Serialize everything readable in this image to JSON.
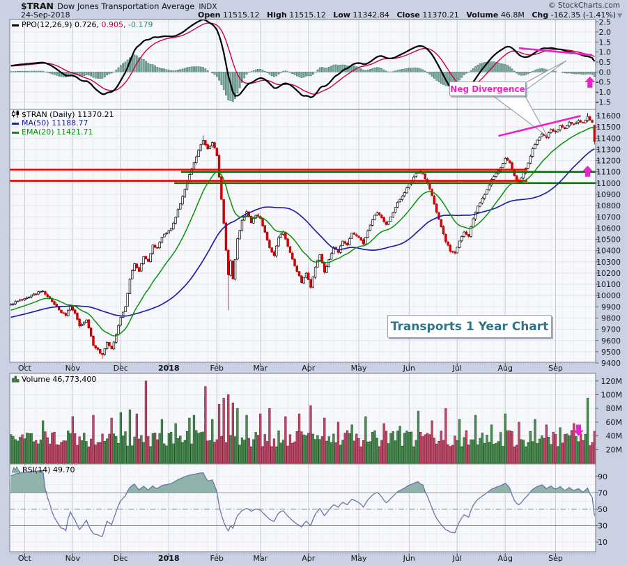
{
  "header": {
    "symbol": "$TRAN",
    "name": "Dow Jones Transportation Average",
    "exchange": "INDX",
    "date": "24-Sep-2018",
    "copyright": "© StockCharts.com",
    "quote": {
      "open": {
        "label": "Open",
        "value": "11515.12"
      },
      "high": {
        "label": "High",
        "value": "11515.12"
      },
      "low": {
        "label": "Low",
        "value": "11342.84"
      },
      "close": {
        "label": "Close",
        "value": "11370.21"
      },
      "volume": {
        "label": "Volume",
        "value": "46.8M"
      },
      "chg": {
        "label": "Chg",
        "value": "-162.35 (-1.41%)",
        "dropdown": "▼"
      }
    }
  },
  "panels": {
    "ppo": {
      "legend_label": "PPO(12,26,9)",
      "v1": "0.726,",
      "v2": "0.905,",
      "v3": "-0.179",
      "axis": [
        "2.5",
        "2.0",
        "1.5",
        "1.0",
        "0.5",
        "0.0",
        "-0.5",
        "-1.0",
        "-1.5"
      ]
    },
    "price": {
      "legend_symbol": "$TRAN (Daily) 11370.21",
      "legend_ma": "MA(50) 11188.77",
      "legend_ema": "EMA(20) 11421.71",
      "axis": [
        "11600",
        "11500",
        "11400",
        "11300",
        "11200",
        "11100",
        "11000",
        "10900",
        "10800",
        "10700",
        "10600",
        "10500",
        "10400",
        "10300",
        "10200",
        "10100",
        "10000",
        "9900",
        "9800",
        "9700",
        "9600",
        "9500",
        "9400"
      ]
    },
    "volume": {
      "legend": "Volume 46,773,400",
      "axis": [
        "120M",
        "100M",
        "80M",
        "60M",
        "40M",
        "20M"
      ]
    },
    "rsi": {
      "legend": "RSI(14) 49.70",
      "axis": [
        "90",
        "70",
        "50",
        "30",
        "10"
      ]
    }
  },
  "annotations": {
    "neg_divergence": "Neg Divergence",
    "chart_label": "Transports 1 Year Chart"
  },
  "chart_data": {
    "type": "candlestick",
    "title": "Transports 1 Year Chart",
    "instrument": "$TRAN Dow Jones Transportation Average INDX",
    "date": "24-Sep-2018",
    "last": {
      "open": 11515.12,
      "high": 11515.12,
      "low": 11342.84,
      "close": 11370.21,
      "volume": 46773400,
      "change": -162.35,
      "change_pct": -1.41
    },
    "indicators": {
      "ppo": {
        "params": [
          12,
          26,
          9
        ],
        "values": [
          0.726,
          0.905,
          -0.179
        ],
        "range": [
          -1.5,
          2.5
        ]
      },
      "ma50": 11188.77,
      "ema20": 11421.71,
      "rsi": {
        "params": [
          14
        ],
        "value": 49.7,
        "range": [
          0,
          100
        ]
      },
      "volume_axis_max_m": 120
    },
    "price_axis": {
      "min": 9400,
      "max": 11600,
      "step": 100
    },
    "months": [
      "Oct",
      "Nov",
      "Dec",
      "2018",
      "Feb",
      "Mar",
      "Apr",
      "May",
      "Jun",
      "Jul",
      "Aug",
      "Sep"
    ],
    "month_start_days": [
      6,
      27,
      48,
      69,
      90,
      109,
      130,
      152,
      174,
      195,
      216,
      238
    ],
    "total_days": 256,
    "close_keypoints": [
      [
        -60,
        9650
      ],
      [
        -45,
        9720
      ],
      [
        -30,
        9790
      ],
      [
        -15,
        9840
      ],
      [
        -5,
        9890
      ],
      [
        0,
        9920
      ],
      [
        4,
        9960
      ],
      [
        8,
        9990
      ],
      [
        12,
        10030
      ],
      [
        14,
        10040
      ],
      [
        16,
        9985
      ],
      [
        18,
        9950
      ],
      [
        21,
        9870
      ],
      [
        24,
        9820
      ],
      [
        26,
        9905
      ],
      [
        28,
        9845
      ],
      [
        30,
        9725
      ],
      [
        33,
        9780
      ],
      [
        36,
        9560
      ],
      [
        40,
        9470
      ],
      [
        42,
        9585
      ],
      [
        44,
        9530
      ],
      [
        46,
        9650
      ],
      [
        48,
        9805
      ],
      [
        50,
        9900
      ],
      [
        52,
        10150
      ],
      [
        54,
        10280
      ],
      [
        56,
        10220
      ],
      [
        58,
        10350
      ],
      [
        60,
        10300
      ],
      [
        62,
        10450
      ],
      [
        64,
        10420
      ],
      [
        66,
        10520
      ],
      [
        68,
        10560
      ],
      [
        70,
        10600
      ],
      [
        72,
        10700
      ],
      [
        74,
        10820
      ],
      [
        76,
        10950
      ],
      [
        78,
        11080
      ],
      [
        80,
        11180
      ],
      [
        82,
        11300
      ],
      [
        84,
        11385
      ],
      [
        86,
        11300
      ],
      [
        88,
        11360
      ],
      [
        90,
        11250
      ],
      [
        91,
        11050
      ],
      [
        92,
        10850
      ],
      [
        93,
        10640
      ],
      [
        94,
        10400
      ],
      [
        95,
        10180
      ],
      [
        96,
        10310
      ],
      [
        97,
        10150
      ],
      [
        99,
        10500
      ],
      [
        101,
        10670
      ],
      [
        103,
        10750
      ],
      [
        105,
        10650
      ],
      [
        107,
        10720
      ],
      [
        109,
        10680
      ],
      [
        111,
        10560
      ],
      [
        113,
        10420
      ],
      [
        115,
        10350
      ],
      [
        117,
        10520
      ],
      [
        119,
        10570
      ],
      [
        121,
        10440
      ],
      [
        123,
        10320
      ],
      [
        125,
        10220
      ],
      [
        127,
        10120
      ],
      [
        129,
        10200
      ],
      [
        131,
        10070
      ],
      [
        133,
        10260
      ],
      [
        135,
        10360
      ],
      [
        137,
        10210
      ],
      [
        139,
        10320
      ],
      [
        141,
        10430
      ],
      [
        143,
        10380
      ],
      [
        145,
        10490
      ],
      [
        147,
        10450
      ],
      [
        149,
        10560
      ],
      [
        152,
        10520
      ],
      [
        154,
        10460
      ],
      [
        156,
        10580
      ],
      [
        158,
        10680
      ],
      [
        160,
        10740
      ],
      [
        162,
        10690
      ],
      [
        164,
        10630
      ],
      [
        166,
        10700
      ],
      [
        168,
        10790
      ],
      [
        170,
        10860
      ],
      [
        172,
        10920
      ],
      [
        174,
        10990
      ],
      [
        176,
        11060
      ],
      [
        178,
        11110
      ],
      [
        180,
        11080
      ],
      [
        182,
        11000
      ],
      [
        184,
        10890
      ],
      [
        186,
        10740
      ],
      [
        188,
        10610
      ],
      [
        190,
        10480
      ],
      [
        192,
        10400
      ],
      [
        194,
        10380
      ],
      [
        196,
        10480
      ],
      [
        198,
        10570
      ],
      [
        200,
        10530
      ],
      [
        202,
        10680
      ],
      [
        204,
        10790
      ],
      [
        206,
        10870
      ],
      [
        208,
        10940
      ],
      [
        210,
        11030
      ],
      [
        212,
        11090
      ],
      [
        214,
        11140
      ],
      [
        216,
        11220
      ],
      [
        218,
        11180
      ],
      [
        220,
        11060
      ],
      [
        222,
        11010
      ],
      [
        224,
        11090
      ],
      [
        226,
        11180
      ],
      [
        228,
        11300
      ],
      [
        230,
        11380
      ],
      [
        232,
        11440
      ],
      [
        234,
        11410
      ],
      [
        236,
        11470
      ],
      [
        238,
        11450
      ],
      [
        240,
        11510
      ],
      [
        242,
        11480
      ],
      [
        244,
        11550
      ],
      [
        246,
        11520
      ],
      [
        248,
        11560
      ],
      [
        250,
        11530
      ],
      [
        252,
        11590
      ],
      [
        254,
        11535
      ],
      [
        255,
        11370.21
      ]
    ],
    "special_days": [
      {
        "day": 40,
        "low": 9438
      },
      {
        "day": 84,
        "high": 11423
      },
      {
        "day": 95,
        "low": 9868
      },
      {
        "day": 252,
        "high": 11623
      }
    ],
    "volume_base_range_m": [
      24,
      48
    ],
    "volume_spikes_m": [
      [
        14,
        62
      ],
      [
        27,
        68
      ],
      [
        36,
        70
      ],
      [
        44,
        66
      ],
      [
        48,
        74
      ],
      [
        52,
        78
      ],
      [
        55,
        72
      ],
      [
        59,
        120
      ],
      [
        66,
        64
      ],
      [
        72,
        58
      ],
      [
        78,
        66
      ],
      [
        80,
        70
      ],
      [
        85,
        112
      ],
      [
        88,
        64
      ],
      [
        91,
        86
      ],
      [
        93,
        95
      ],
      [
        95,
        100
      ],
      [
        97,
        88
      ],
      [
        99,
        80
      ],
      [
        103,
        70
      ],
      [
        109,
        72
      ],
      [
        113,
        80
      ],
      [
        120,
        68
      ],
      [
        126,
        72
      ],
      [
        131,
        84
      ],
      [
        137,
        66
      ],
      [
        143,
        60
      ],
      [
        149,
        56
      ],
      [
        155,
        68
      ],
      [
        163,
        58
      ],
      [
        170,
        54
      ],
      [
        178,
        76
      ],
      [
        184,
        62
      ],
      [
        190,
        80
      ],
      [
        196,
        64
      ],
      [
        203,
        70
      ],
      [
        210,
        56
      ],
      [
        216,
        72
      ],
      [
        222,
        60
      ],
      [
        229,
        64
      ],
      [
        234,
        56
      ],
      [
        240,
        52
      ],
      [
        246,
        58
      ],
      [
        252,
        95
      ],
      [
        255,
        46.8
      ]
    ],
    "overlays": {
      "horizontal_lines": [
        {
          "color": "red",
          "value": 11120,
          "d1": 0,
          "d2": 225
        },
        {
          "color": "red",
          "value": 11020,
          "d1": 0,
          "d2": 225
        },
        {
          "color": "green",
          "value": 11100,
          "d1": 75,
          "d2": 256
        },
        {
          "color": "green",
          "value": 11000,
          "d1": 72,
          "d2": 256
        }
      ],
      "trendlines": [
        {
          "panel": "price",
          "d1": 213,
          "v1": 11420,
          "d2": 249,
          "v2": 11598
        },
        {
          "panel": "ppo",
          "d1": 222,
          "v1": 1.19,
          "d2": 254,
          "v2": 0.85
        }
      ],
      "arrows": [
        {
          "panel": "ppo",
          "d": 253,
          "v": -0.23,
          "dir": "up"
        },
        {
          "panel": "price",
          "d": 252,
          "v": 11155,
          "dir": "up"
        },
        {
          "panel": "volume",
          "d": 248,
          "v": 40,
          "dir": "down"
        }
      ],
      "callout_tails": [
        [
          [
            703,
            134
          ],
          [
            786,
            196
          ],
          [
            748,
            128
          ]
        ],
        [
          [
            752,
            120
          ],
          [
            813,
            87
          ],
          [
            752,
            131
          ]
        ]
      ]
    },
    "colors": {
      "up": "#ffffff",
      "up_stroke": "#000000",
      "down": "#dd0000",
      "down_stroke": "#b00000",
      "ma50": "#2020a8",
      "ema20": "#059405",
      "hist_fill": "#85aba4",
      "hist_stroke": "#2f6e62",
      "ppo": "#000000",
      "ppo_signal": "#cc0040",
      "vol_up": "#4e8a55",
      "vol_up_stroke": "#1e5a24",
      "vol_down": "#b84e68",
      "vol_down_stroke": "#8a1f40",
      "rsi": "#6677a9",
      "rsi_fill": "#8fb2ab",
      "magenta": "#ee22cc",
      "res": "#ee0000",
      "sup": "#007a00"
    }
  }
}
